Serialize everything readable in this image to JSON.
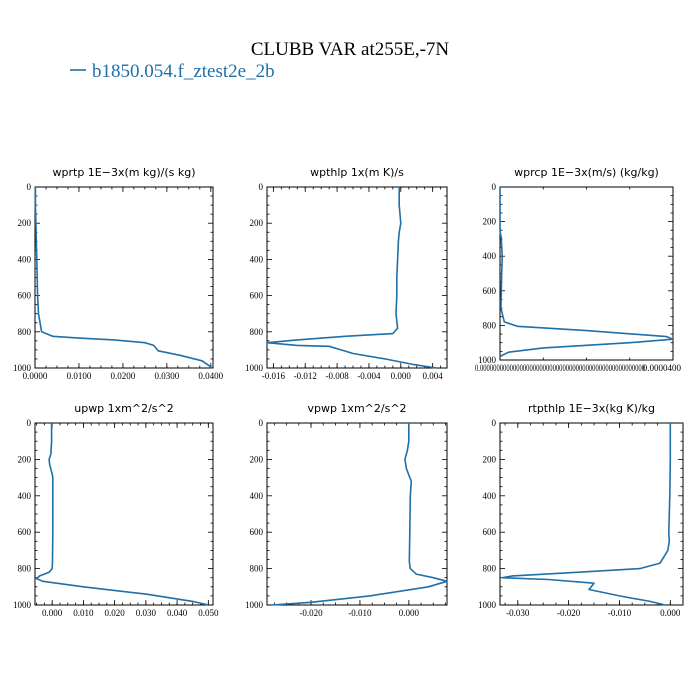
{
  "figure": {
    "title": "CLUBB VAR at255E,-7N",
    "legend": [
      {
        "label": "b1850.054.f_ztest2e_2b",
        "color": "#1f6fa8"
      }
    ]
  },
  "chart_data": [
    {
      "type": "line",
      "title": "wprtp   1E−3x(m kg)/(s kg)",
      "xlim": [
        0.0,
        0.0405
      ],
      "ylim": [
        1000,
        0
      ],
      "xticks": [
        0.0,
        0.01,
        0.02,
        0.03,
        0.04
      ],
      "xtick_labels": [
        "0.0000",
        "0.0100",
        "0.0200",
        "0.0300",
        "0.0400"
      ],
      "yticks": [
        0,
        200,
        400,
        600,
        800,
        1000
      ],
      "ytick_labels": [
        "0",
        "200",
        "400",
        "600",
        "800",
        "1000"
      ],
      "series": [
        {
          "name": "b1850.054.f_ztest2e_2b",
          "x": [
            0.0001,
            0.0001,
            0.0002,
            0.0003,
            0.0004,
            0.0005,
            0.0006,
            0.0008,
            0.0015,
            0.004,
            0.01,
            0.018,
            0.025,
            0.027,
            0.028,
            0.033,
            0.038,
            0.0395,
            0.0402
          ],
          "y": [
            0,
            100,
            200,
            300,
            400,
            500,
            600,
            700,
            800,
            825,
            835,
            845,
            860,
            875,
            905,
            930,
            960,
            985,
            1000
          ]
        }
      ]
    },
    {
      "type": "line",
      "title": "wpthlp   1x(m K)/s",
      "xlim": [
        -0.0168,
        0.0058
      ],
      "ylim": [
        1000,
        0
      ],
      "xticks": [
        -0.016,
        -0.012,
        -0.008,
        -0.004,
        0.0,
        0.004
      ],
      "xtick_labels": [
        "-0.016",
        "-0.012",
        "-0.008",
        "-0.004",
        "0.000",
        "0.004"
      ],
      "yticks": [
        0,
        200,
        400,
        600,
        800,
        1000
      ],
      "ytick_labels": [
        "0",
        "200",
        "400",
        "600",
        "800",
        "1000"
      ],
      "series": [
        {
          "name": "b1850.054.f_ztest2e_2b",
          "x": [
            -0.0002,
            -0.0002,
            0.0,
            -0.0002,
            -0.0003,
            -0.0004,
            -0.0005,
            -0.0005,
            -0.0006,
            -0.0004,
            -0.001,
            -0.007,
            -0.013,
            -0.0168,
            -0.013,
            -0.009,
            -0.0075,
            -0.006,
            -0.002,
            0.0015,
            0.0045
          ],
          "y": [
            0,
            100,
            200,
            250,
            300,
            400,
            500,
            600,
            700,
            780,
            810,
            825,
            845,
            860,
            875,
            880,
            900,
            920,
            950,
            980,
            1000
          ]
        }
      ]
    },
    {
      "type": "line",
      "title": "wprcp   1E−3x(m/s) (kg/kg)",
      "xlim": [
        0.0,
        4e-05
      ],
      "ylim": [
        1000,
        0
      ],
      "xticks": [
        0.0,
        4e-05
      ],
      "xtick_labels": [
        "0.00000000000000000000000000000000000000000000000000",
        "0.0000400"
      ],
      "yticks": [
        0,
        200,
        400,
        600,
        800,
        1000
      ],
      "ytick_labels": [
        "0",
        "200",
        "400",
        "600",
        "800",
        "1000"
      ],
      "series": [
        {
          "name": "b1850.054.f_ztest2e_2b",
          "x": [
            0.0,
            0.0,
            3e-07,
            5e-07,
            4e-07,
            3e-07,
            2e-07,
            1e-06,
            4e-06,
            2e-05,
            3.85e-05,
            4e-05,
            3e-05,
            1e-05,
            2e-06,
            0.0
          ],
          "y": [
            0,
            250,
            300,
            400,
            500,
            600,
            700,
            780,
            805,
            830,
            865,
            880,
            900,
            930,
            955,
            980
          ]
        }
      ]
    },
    {
      "type": "line",
      "title": "upwp   1xm^2/s^2",
      "xlim": [
        -0.0055,
        0.0515
      ],
      "ylim": [
        1000,
        0
      ],
      "xticks": [
        0.0,
        0.01,
        0.02,
        0.03,
        0.04,
        0.05
      ],
      "xtick_labels": [
        "0.000",
        "0.010",
        "0.020",
        "0.030",
        "0.040",
        "0.050"
      ],
      "yticks": [
        0,
        200,
        400,
        600,
        800,
        1000
      ],
      "ytick_labels": [
        "0",
        "200",
        "400",
        "600",
        "800",
        "1000"
      ],
      "series": [
        {
          "name": "b1850.054.f_ztest2e_2b",
          "x": [
            -0.0002,
            -0.0002,
            -0.0004,
            -0.001,
            -0.0008,
            0.0,
            0.0002,
            0.0002,
            0.0002,
            0.0001,
            0.0,
            -0.001,
            -0.004,
            -0.005,
            -0.003,
            0.01,
            0.03,
            0.045,
            0.05
          ],
          "y": [
            0,
            100,
            170,
            200,
            230,
            280,
            300,
            400,
            600,
            760,
            800,
            820,
            840,
            855,
            870,
            900,
            940,
            980,
            1000
          ]
        }
      ]
    },
    {
      "type": "line",
      "title": "vpwp   1xm^2/s^2",
      "xlim": [
        -0.029,
        0.0078
      ],
      "ylim": [
        1000,
        0
      ],
      "xticks": [
        -0.02,
        -0.01,
        0.0
      ],
      "xtick_labels": [
        "-0.020",
        "-0.010",
        "0.000"
      ],
      "yticks": [
        0,
        200,
        400,
        600,
        800,
        1000
      ],
      "ytick_labels": [
        "0",
        "200",
        "400",
        "600",
        "800",
        "1000"
      ],
      "series": [
        {
          "name": "b1850.054.f_ztest2e_2b",
          "x": [
            0.0,
            0.0,
            -0.0003,
            -0.0008,
            -0.0005,
            0.0002,
            0.0005,
            0.0003,
            0.0002,
            0.0001,
            0.0003,
            0.0015,
            0.005,
            0.0078,
            0.004,
            -0.008,
            -0.02,
            -0.028
          ],
          "y": [
            0,
            100,
            150,
            200,
            250,
            300,
            320,
            400,
            600,
            760,
            800,
            830,
            850,
            870,
            900,
            950,
            985,
            1000
          ]
        }
      ]
    },
    {
      "type": "line",
      "title": "rtpthlp   1E−3x(kg K)/kg",
      "xlim": [
        -0.0335,
        0.0025
      ],
      "ylim": [
        1000,
        0
      ],
      "xticks": [
        -0.03,
        -0.02,
        -0.01,
        0.0
      ],
      "xtick_labels": [
        "-0.030",
        "-0.020",
        "-0.010",
        "0.000"
      ],
      "yticks": [
        0,
        200,
        400,
        600,
        800,
        1000
      ],
      "ytick_labels": [
        "0",
        "200",
        "400",
        "600",
        "800",
        "1000"
      ],
      "series": [
        {
          "name": "b1850.054.f_ztest2e_2b",
          "x": [
            0.0,
            0.0,
            -0.0001,
            -0.0002,
            -0.0003,
            -0.0002,
            -0.0005,
            -0.002,
            -0.006,
            -0.018,
            -0.031,
            -0.033,
            -0.024,
            -0.015,
            -0.016,
            -0.01,
            -0.004,
            -0.001
          ],
          "y": [
            0,
            200,
            400,
            500,
            600,
            650,
            700,
            770,
            800,
            820,
            840,
            850,
            860,
            880,
            915,
            950,
            980,
            1000
          ]
        }
      ]
    }
  ]
}
